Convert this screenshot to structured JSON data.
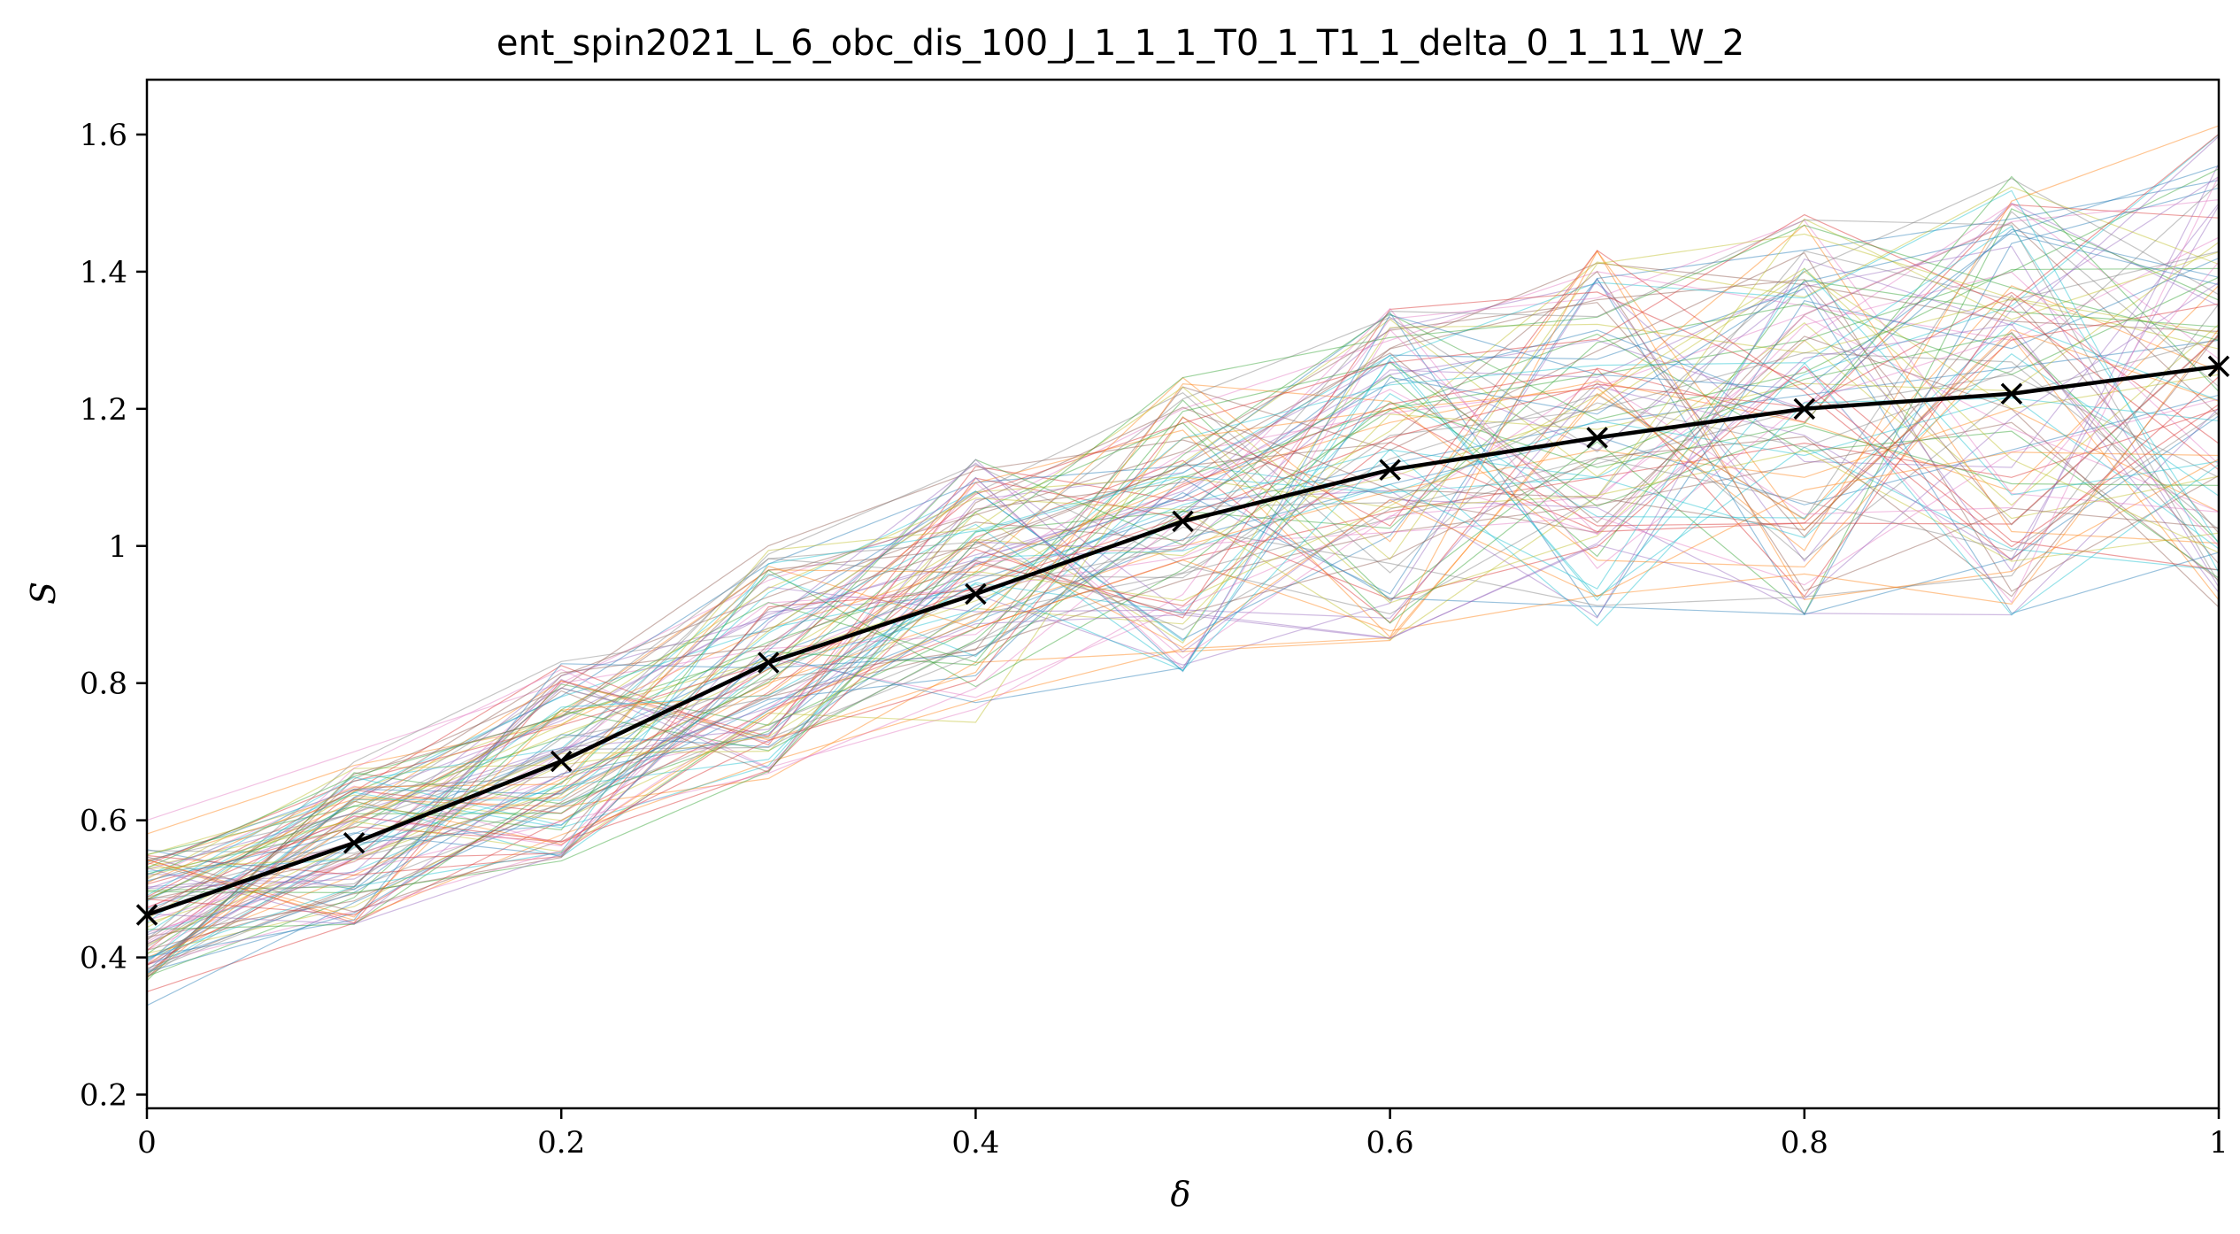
{
  "chart_data": {
    "type": "line",
    "title": "ent_spin2021_L_6_obc_dis_100_J_1_1_1_T0_1_T1_1_delta_0_1_11_W_2",
    "xlabel": "δ",
    "ylabel": "S",
    "xlim": [
      0,
      1
    ],
    "ylim": [
      0.18,
      1.68
    ],
    "x": [
      0,
      0.1,
      0.2,
      0.3,
      0.4,
      0.5,
      0.6,
      0.7,
      0.8,
      0.9,
      1.0
    ],
    "x_tick_labels": [
      "0",
      "0.2",
      "0.4",
      "0.6",
      "0.8",
      "1"
    ],
    "x_tick_values": [
      0,
      0.2,
      0.4,
      0.6,
      0.8,
      1.0
    ],
    "y_tick_labels": [
      "0.2",
      "0.4",
      "0.6",
      "0.8",
      "1",
      "1.2",
      "1.4",
      "1.6"
    ],
    "y_tick_values": [
      0.2,
      0.4,
      0.6,
      0.8,
      1.0,
      1.2,
      1.4,
      1.6
    ],
    "grid": false,
    "legend": "none",
    "mean_series": {
      "color": "#000000",
      "marker": "x",
      "values": [
        0.462,
        0.567,
        0.686,
        0.83,
        0.93,
        1.036,
        1.111,
        1.158,
        1.2,
        1.222,
        1.262
      ]
    },
    "realizations": {
      "count": 100,
      "colors": [
        "#1f77b4",
        "#ff7f0e",
        "#2ca02c",
        "#d62728",
        "#9467bd",
        "#8c564b",
        "#e377c2",
        "#7f7f7f",
        "#bcbd22",
        "#17becf"
      ],
      "series": [
        [
          0.47,
          0.58,
          0.7,
          0.84,
          0.95,
          1.05,
          1.12,
          1.18,
          1.22,
          1.26,
          1.3
        ],
        [
          0.4,
          0.52,
          0.66,
          0.8,
          0.9,
          1.0,
          1.08,
          1.14,
          1.1,
          1.2,
          1.05
        ],
        [
          0.55,
          0.62,
          0.72,
          0.86,
          0.96,
          1.1,
          1.2,
          1.25,
          1.3,
          1.4,
          1.55
        ],
        [
          0.35,
          0.45,
          0.6,
          0.76,
          0.88,
          0.98,
          1.05,
          1.1,
          1.15,
          1.1,
          1.2
        ],
        [
          0.5,
          0.6,
          0.75,
          0.9,
          0.98,
          1.08,
          1.25,
          1.3,
          1.2,
          1.5,
          1.35
        ],
        [
          0.42,
          0.55,
          0.64,
          0.78,
          0.85,
          0.95,
          1.02,
          1.06,
          1.12,
          1.18,
          0.95
        ],
        [
          0.6,
          0.7,
          0.8,
          0.95,
          1.05,
          1.2,
          1.3,
          1.4,
          1.35,
          1.3,
          1.45
        ],
        [
          0.38,
          0.5,
          0.62,
          0.74,
          0.86,
          0.96,
          1.04,
          1.12,
          1.2,
          1.25,
          1.1
        ],
        [
          0.45,
          0.54,
          0.68,
          0.82,
          0.92,
          1.04,
          1.1,
          1.2,
          1.4,
          1.2,
          1.25
        ],
        [
          0.52,
          0.64,
          0.78,
          0.88,
          0.94,
          1.06,
          1.14,
          1.1,
          1.25,
          1.35,
          1.6
        ],
        [
          0.33,
          0.48,
          0.62,
          0.77,
          0.89,
          1.01,
          1.09,
          1.16,
          1.06,
          1.14,
          1.22
        ],
        [
          0.58,
          0.68,
          0.74,
          0.88,
          0.97,
          1.09,
          1.18,
          1.24,
          1.18,
          1.08,
          1.38
        ]
      ]
    }
  }
}
